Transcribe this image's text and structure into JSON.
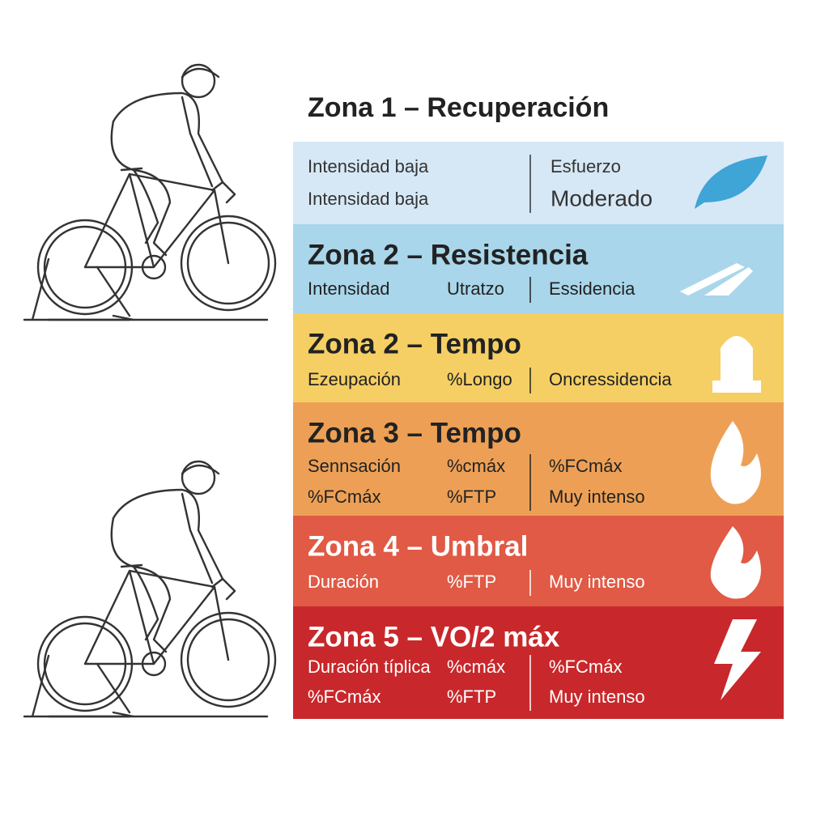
{
  "title": "Zona 1 – Recuperación",
  "zones": [
    {
      "rows": [
        [
          "Intensidad baja",
          "Esfuerzo"
        ],
        [
          "Intensidad baja",
          "Moderado"
        ]
      ]
    },
    {
      "title": "Zona 2 – Resistencia",
      "rows": [
        [
          "Intensidad",
          "Utratzo",
          "Essidencia"
        ]
      ]
    },
    {
      "title": "Zona 2 – Tempo",
      "rows": [
        [
          "Ezeupación",
          "%Longo",
          "Oncressidencia"
        ]
      ]
    },
    {
      "title": "Zona 3 – Tempo",
      "rows": [
        [
          "Sennsación",
          "%cmáx",
          "%FCmáx"
        ],
        [
          "%FCmáx",
          "%FTP",
          "Muy intenso"
        ]
      ]
    },
    {
      "title": "Zona 4 – Umbral",
      "rows": [
        [
          "Duración",
          "%FTP",
          "Muy intenso"
        ]
      ]
    },
    {
      "title": "Zona 5 – VO/2 máx",
      "rows": [
        [
          "Duración típlica",
          "%cmáx",
          "%FCmáx"
        ],
        [
          "%FCmáx",
          "%FTP",
          "Muy intenso"
        ]
      ]
    }
  ]
}
